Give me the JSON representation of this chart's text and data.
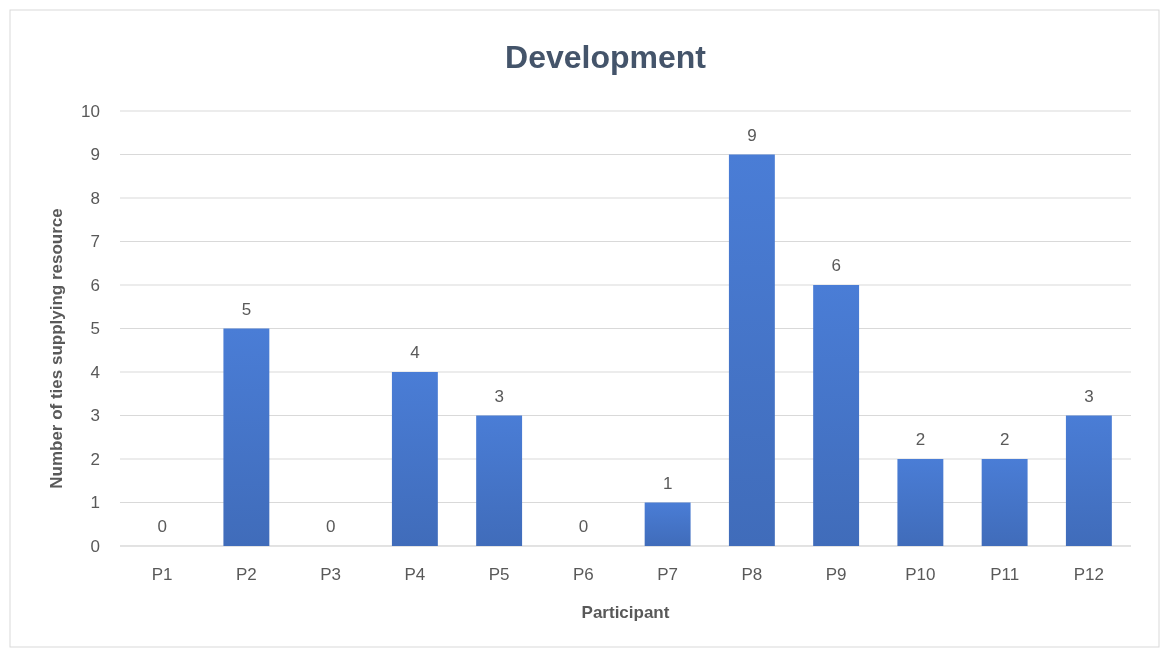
{
  "chart_data": {
    "type": "bar",
    "title": "Development",
    "xlabel": "Participant",
    "ylabel": "Number of ties supplying resource",
    "categories": [
      "P1",
      "P2",
      "P3",
      "P4",
      "P5",
      "P6",
      "P7",
      "P8",
      "P9",
      "P10",
      "P11",
      "P12"
    ],
    "values": [
      0,
      5,
      0,
      4,
      3,
      0,
      1,
      9,
      6,
      2,
      2,
      3
    ],
    "color": "#4472c4",
    "ylim": [
      0,
      10
    ],
    "yticks": [
      0,
      1,
      2,
      3,
      4,
      5,
      6,
      7,
      8,
      9,
      10
    ],
    "grid": "y",
    "data_labels": true
  }
}
